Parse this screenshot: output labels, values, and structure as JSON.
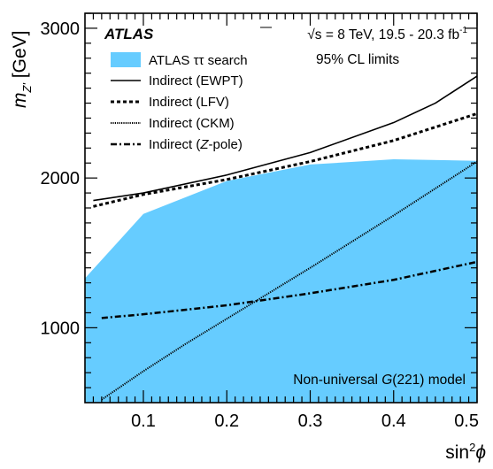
{
  "chart_data": {
    "type": "area",
    "experiment": "ATLAS",
    "energy_label": "√s = 8 TeV, 19.5 - 20.3 fb",
    "energy_label_sup": "-1",
    "cl_label": "95% CL limits",
    "model_label_prefix": "Non-universal ",
    "model_label_italic": "G",
    "model_label_suffix": "(221) model",
    "ylabel_main": "m",
    "ylabel_sub": "Z'",
    "ylabel_unit": " [GeV]",
    "xlabel_main": "sin",
    "xlabel_sup": "2",
    "xlabel_var": "ϕ",
    "xlim": [
      0.03,
      0.5
    ],
    "ylim": [
      500,
      3100
    ],
    "x_ticks": [
      0.1,
      0.2,
      0.3,
      0.4,
      0.5
    ],
    "x_tick_labels": [
      "0.1",
      "0.2",
      "0.3",
      "0.4",
      "0.5"
    ],
    "y_ticks": [
      1000,
      2000,
      3000
    ],
    "y_tick_labels": [
      "1000",
      "2000",
      "3000"
    ],
    "series": [
      {
        "name": "ATLAS ττ search",
        "style": "fill",
        "color": "#66ccff",
        "x": [
          0.03,
          0.1,
          0.2,
          0.3,
          0.4,
          0.5
        ],
        "y": [
          1330,
          1760,
          1980,
          2090,
          2125,
          2115
        ]
      },
      {
        "name": "Indirect (EWPT)",
        "style": "solid",
        "color": "#000000",
        "x": [
          0.04,
          0.1,
          0.2,
          0.3,
          0.4,
          0.45,
          0.5
        ],
        "y": [
          1850,
          1900,
          2020,
          2170,
          2370,
          2500,
          2680
        ]
      },
      {
        "name": "Indirect (LFV)",
        "style": "dashed",
        "color": "#000000",
        "x": [
          0.04,
          0.1,
          0.2,
          0.3,
          0.4,
          0.5
        ],
        "y": [
          1810,
          1890,
          1990,
          2110,
          2250,
          2430
        ]
      },
      {
        "name": "Indirect (CKM)",
        "style": "dotted",
        "color": "#000000",
        "x": [
          0.05,
          0.1,
          0.15,
          0.2,
          0.25,
          0.3,
          0.35,
          0.4,
          0.45,
          0.5
        ],
        "y": [
          520,
          710,
          890,
          1060,
          1230,
          1400,
          1575,
          1750,
          1930,
          2110
        ]
      },
      {
        "name": "Indirect (Z-pole)",
        "name_prefix": "Indirect (",
        "name_italic": "Z",
        "name_suffix": "-pole)",
        "style": "dashdot",
        "color": "#000000",
        "x": [
          0.05,
          0.1,
          0.2,
          0.3,
          0.4,
          0.5
        ],
        "y": [
          1065,
          1090,
          1150,
          1230,
          1320,
          1440
        ]
      }
    ]
  }
}
